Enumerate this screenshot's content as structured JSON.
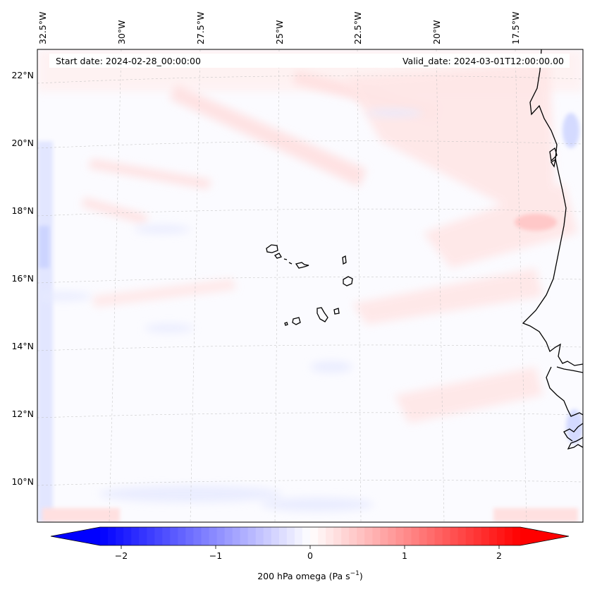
{
  "header": {
    "start_date": "Start date: 2024-02-28_00:00:00",
    "valid_date": "Valid_date: 2024-03-01T12:00:00.00"
  },
  "map": {
    "lon_labels": [
      "32.5°W",
      "30°W",
      "27.5°W",
      "25°W",
      "22.5°W",
      "20°W",
      "17.5°W"
    ],
    "lat_labels": [
      "22°N",
      "20°N",
      "18°N",
      "16°N",
      "14°N",
      "12°N",
      "10°N"
    ]
  },
  "colorbar": {
    "label_main": "200 hPa omega (Pa s",
    "label_exp": "−1",
    "label_close": ")",
    "ticks": [
      "−2",
      "−1",
      "0",
      "1",
      "2"
    ],
    "min": -2.7,
    "max": 2.7,
    "colors": {
      "negative": "#0000ff",
      "zero": "#ffffff",
      "positive": "#ff0000"
    }
  }
}
